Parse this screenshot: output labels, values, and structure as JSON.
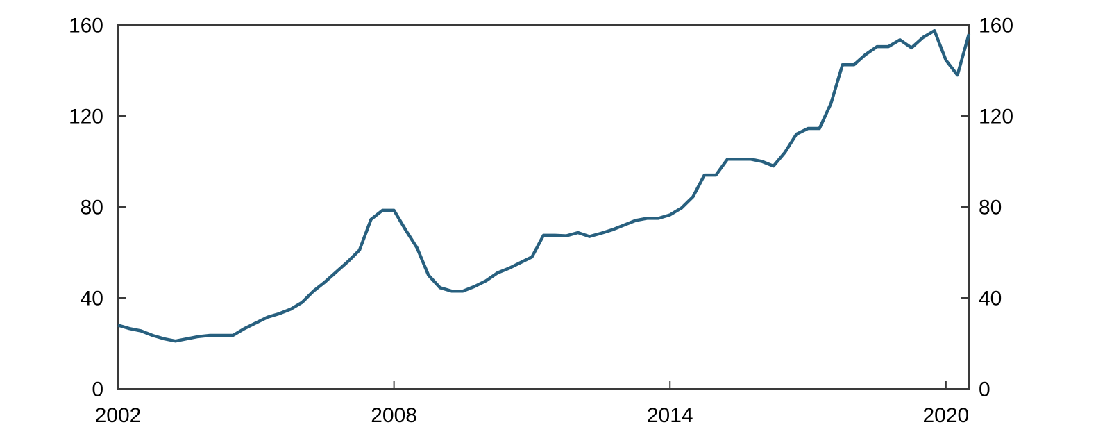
{
  "chart_data": {
    "type": "line",
    "title": "",
    "xlabel": "",
    "ylabel": "",
    "series_name": "index-series",
    "x": [
      2002.0,
      2002.25,
      2002.5,
      2002.75,
      2003.0,
      2003.25,
      2003.5,
      2003.75,
      2004.0,
      2004.25,
      2004.5,
      2004.75,
      2005.0,
      2005.25,
      2005.5,
      2005.75,
      2006.0,
      2006.25,
      2006.5,
      2006.75,
      2007.0,
      2007.25,
      2007.5,
      2007.75,
      2008.0,
      2008.25,
      2008.5,
      2008.75,
      2009.0,
      2009.25,
      2009.5,
      2009.75,
      2010.0,
      2010.25,
      2010.5,
      2010.75,
      2011.0,
      2011.25,
      2011.5,
      2011.75,
      2012.0,
      2012.25,
      2012.5,
      2012.75,
      2013.0,
      2013.25,
      2013.5,
      2013.75,
      2014.0,
      2014.25,
      2014.5,
      2014.75,
      2015.0,
      2015.25,
      2015.5,
      2015.75,
      2016.0,
      2016.25,
      2016.5,
      2016.75,
      2017.0,
      2017.25,
      2017.5,
      2017.75,
      2018.0,
      2018.25,
      2018.5,
      2018.75,
      2019.0,
      2019.25,
      2019.5,
      2019.75,
      2020.0,
      2020.25,
      2020.5
    ],
    "values": [
      28,
      26.5,
      25.5,
      23.5,
      22,
      21,
      22,
      23,
      23.5,
      23.5,
      23.5,
      26.5,
      29,
      31.5,
      33,
      35,
      38,
      43,
      47,
      51.5,
      56,
      61,
      74.5,
      78.5,
      78.5,
      70,
      62,
      50,
      44.5,
      43,
      43,
      45,
      47.5,
      51,
      53,
      55.5,
      58,
      67.5,
      67.5,
      67.3,
      68.7,
      67,
      68.4,
      70,
      72,
      74,
      75,
      75,
      76.5,
      79.5,
      84.5,
      94,
      94,
      101,
      101,
      101,
      100,
      98,
      104,
      112,
      114.5,
      114.5,
      125.5,
      142.5,
      142.5,
      147,
      150.5,
      150.5,
      153.5,
      150,
      154.5,
      157.5,
      144.5,
      138,
      156
    ],
    "xlim": [
      2002,
      2020.5
    ],
    "ylim": [
      0,
      160
    ],
    "x_tick_labels": [
      "2002",
      "2008",
      "2014",
      "2020"
    ],
    "x_tick_values": [
      2002,
      2008,
      2014,
      2020
    ],
    "x_tick_marks": [
      2008,
      2014,
      2020
    ],
    "y_tick_labels": [
      "0",
      "40",
      "80",
      "120",
      "160"
    ],
    "y_tick_values": [
      0,
      40,
      80,
      120,
      160
    ],
    "y_tick_marks": [
      40,
      80,
      120
    ],
    "y_labels_both_sides": true,
    "grid": false,
    "legend_position": "none",
    "frame": true,
    "colors": {
      "line": "#28607f",
      "axis": "#3a3a3a",
      "tick_label": "#000000",
      "background": "#ffffff"
    }
  }
}
